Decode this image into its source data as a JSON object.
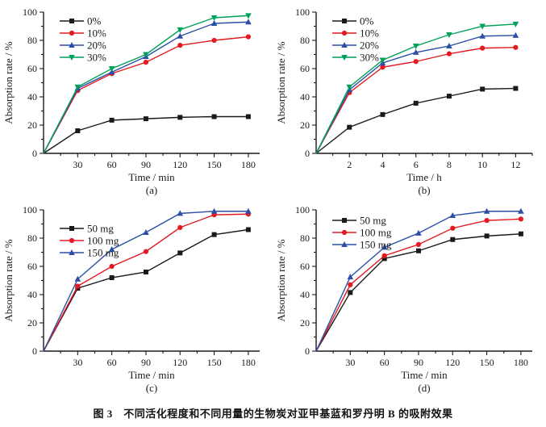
{
  "caption": "图 3　不同活化程度和不同用量的生物炭对亚甲基蓝和罗丹明 B 的吸附效果",
  "colors": {
    "ink": "#1a1a1a",
    "black_series": "#1a1a1a",
    "red_series": "#e31a20",
    "blue_series": "#2b4fa5",
    "green_series": "#00a15a"
  },
  "chart_data": [
    {
      "type": "line",
      "panel_label": "(a)",
      "xlabel": "Time / min",
      "ylabel": "Absorption rate / %",
      "x": [
        0,
        30,
        60,
        90,
        120,
        150,
        180
      ],
      "xlim": [
        0,
        190
      ],
      "ylim": [
        0,
        100
      ],
      "xticks": [
        30,
        60,
        90,
        120,
        150,
        180
      ],
      "xminor": [
        15,
        45,
        75,
        105,
        135,
        165
      ],
      "yticks": [
        0,
        20,
        40,
        60,
        80,
        100
      ],
      "yminor": [
        10,
        30,
        50,
        70,
        90
      ],
      "grid": false,
      "legend_position": "top-left",
      "legend_offset_y": 6,
      "series": [
        {
          "name": "0%",
          "color": "#1a1a1a",
          "marker": "square",
          "values": [
            0,
            16,
            23.5,
            24.5,
            25.5,
            26,
            26
          ]
        },
        {
          "name": "10%",
          "color": "#e31a20",
          "marker": "circle",
          "values": [
            0,
            44.5,
            56.5,
            64.5,
            76.5,
            80,
            82.5
          ]
        },
        {
          "name": "20%",
          "color": "#2b4fa5",
          "marker": "triangle-up",
          "values": [
            0,
            46,
            57.5,
            68.5,
            83,
            92,
            93
          ]
        },
        {
          "name": "30%",
          "color": "#00a15a",
          "marker": "triangle-down",
          "values": [
            0,
            47,
            60,
            70,
            87.5,
            96,
            97.5
          ]
        }
      ]
    },
    {
      "type": "line",
      "panel_label": "(b)",
      "xlabel": "Time / h",
      "ylabel": "Absorption rate / %",
      "x": [
        0,
        2,
        4,
        6,
        8,
        10,
        12
      ],
      "xlim": [
        0,
        13
      ],
      "ylim": [
        0,
        100
      ],
      "xticks": [
        2,
        4,
        6,
        8,
        10,
        12
      ],
      "xminor": [
        1,
        3,
        5,
        7,
        9,
        11,
        13
      ],
      "yticks": [
        0,
        20,
        40,
        60,
        80,
        100
      ],
      "yminor": [
        10,
        30,
        50,
        70,
        90
      ],
      "grid": false,
      "legend_position": "top-left",
      "legend_offset_y": 6,
      "series": [
        {
          "name": "0%",
          "color": "#1a1a1a",
          "marker": "square",
          "values": [
            0,
            18.5,
            27.5,
            35.5,
            40.5,
            45.5,
            46
          ]
        },
        {
          "name": "10%",
          "color": "#e31a20",
          "marker": "circle",
          "values": [
            0,
            43,
            61,
            65,
            70.5,
            74.5,
            75
          ]
        },
        {
          "name": "20%",
          "color": "#2b4fa5",
          "marker": "triangle-up",
          "values": [
            0,
            45,
            64,
            71.5,
            76,
            83,
            83.5
          ]
        },
        {
          "name": "30%",
          "color": "#00a15a",
          "marker": "triangle-down",
          "values": [
            0,
            47,
            66,
            76,
            84,
            90,
            91.5
          ]
        }
      ]
    },
    {
      "type": "line",
      "panel_label": "(c)",
      "xlabel": "Time / min",
      "ylabel": "Absorption rate / %",
      "x": [
        0,
        30,
        60,
        90,
        120,
        150,
        180
      ],
      "xlim": [
        0,
        190
      ],
      "ylim": [
        0,
        100
      ],
      "xticks": [
        30,
        60,
        90,
        120,
        150,
        180
      ],
      "xminor": [
        15,
        45,
        75,
        105,
        135,
        165
      ],
      "yticks": [
        0,
        20,
        40,
        60,
        80,
        100
      ],
      "yminor": [
        10,
        30,
        50,
        70,
        90
      ],
      "grid": false,
      "legend_position": "top-left",
      "legend_offset_y": 18,
      "series": [
        {
          "name": "50 mg",
          "color": "#1a1a1a",
          "marker": "square",
          "values": [
            0,
            44.5,
            52,
            56,
            69.5,
            82.5,
            86
          ]
        },
        {
          "name": "100 mg",
          "color": "#e31a20",
          "marker": "circle",
          "values": [
            0,
            46,
            60,
            70.5,
            87.5,
            96.5,
            97
          ]
        },
        {
          "name": "150 mg",
          "color": "#2b4fa5",
          "marker": "triangle-up",
          "values": [
            0,
            51,
            72,
            84,
            97.5,
            99,
            99
          ]
        }
      ]
    },
    {
      "type": "line",
      "panel_label": "(d)",
      "xlabel": "Time / min",
      "ylabel": "Absorption rate / %",
      "x": [
        0,
        30,
        60,
        90,
        120,
        150,
        180
      ],
      "xlim": [
        0,
        190
      ],
      "ylim": [
        0,
        100
      ],
      "xticks": [
        30,
        60,
        90,
        120,
        150,
        180
      ],
      "xminor": [
        15,
        45,
        75,
        105,
        135,
        165
      ],
      "yticks": [
        0,
        20,
        40,
        60,
        80,
        100
      ],
      "yminor": [
        10,
        30,
        50,
        70,
        90
      ],
      "grid": false,
      "legend_position": "top-left",
      "legend_offset_y": 8,
      "series": [
        {
          "name": "50 mg",
          "color": "#1a1a1a",
          "marker": "square",
          "values": [
            0,
            41.5,
            65.5,
            71,
            79,
            81.5,
            83
          ]
        },
        {
          "name": "100 mg",
          "color": "#e31a20",
          "marker": "circle",
          "values": [
            0,
            47,
            67.5,
            75.5,
            87,
            92.5,
            93.5
          ]
        },
        {
          "name": "150 mg",
          "color": "#2b4fa5",
          "marker": "triangle-up",
          "values": [
            0,
            52.5,
            73.5,
            83.5,
            96,
            99,
            99
          ]
        }
      ]
    }
  ]
}
